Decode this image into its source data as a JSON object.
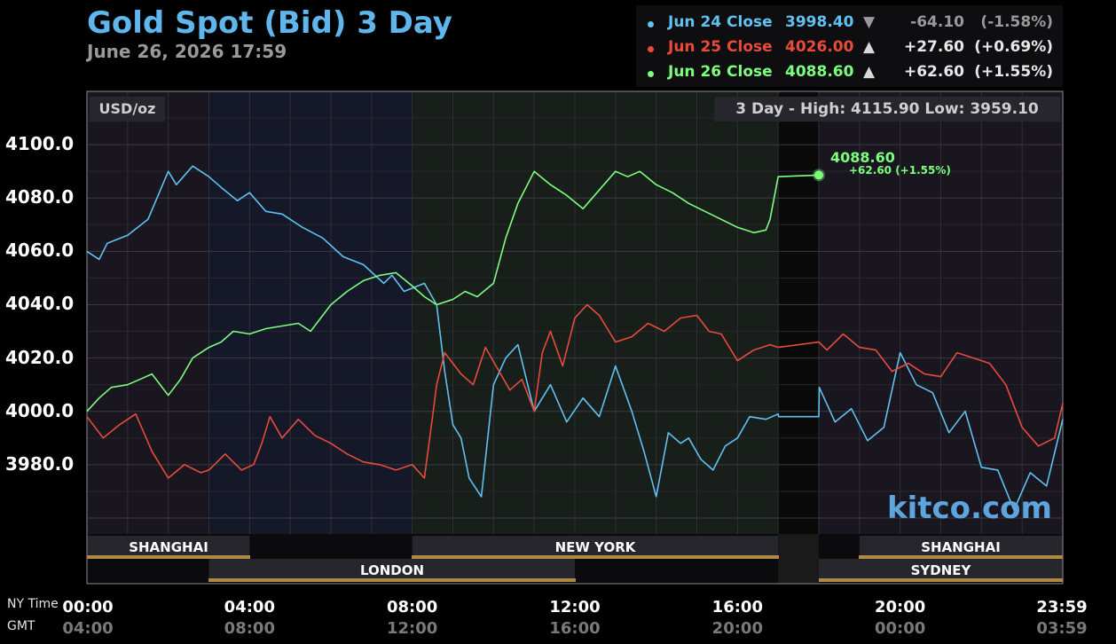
{
  "header": {
    "title": "Gold Spot (Bid) 3 Day",
    "subtitle": "June 26, 2026 17:59"
  },
  "legend": [
    {
      "name": "Jun 24 Close",
      "value": "3998.40",
      "arrow": "▼",
      "change": "-64.10",
      "pct": "(-1.58%)",
      "color": "#5fc2f0"
    },
    {
      "name": "Jun 25 Close",
      "value": "4026.00",
      "arrow": "▲",
      "change": "+27.60",
      "pct": "(+0.69%)",
      "color": "#e84b3a"
    },
    {
      "name": "Jun 26 Close",
      "value": "4088.60",
      "arrow": "▲",
      "change": "+62.60",
      "pct": "(+1.55%)",
      "color": "#7dff7d"
    }
  ],
  "panel": {
    "unit": "USD/oz",
    "high_low": "3 Day - High: 4115.90  Low: 3959.10",
    "last_value": "4088.60",
    "last_change": "+62.60 (+1.55%)",
    "brand": "kitco.com"
  },
  "sessions": [
    {
      "name": "SHANGHAI"
    },
    {
      "name": "LONDON"
    },
    {
      "name": "NEW YORK"
    },
    {
      "name": "SHANGHAI"
    },
    {
      "name": "SYDNEY"
    }
  ],
  "axis_labels": {
    "ny": "NY Time",
    "gmt": "GMT"
  },
  "chart_data": {
    "type": "line",
    "title": "Gold Spot (Bid) 3 Day",
    "ylabel": "USD/oz",
    "ylim": [
      3954,
      4120
    ],
    "yticks": [
      "4100.0",
      "4080.0",
      "4060.0",
      "4040.0",
      "4020.0",
      "4000.0",
      "3980.0"
    ],
    "ytick_values": [
      4100,
      4080,
      4060,
      4040,
      4020,
      4000,
      3980
    ],
    "xlim": [
      0,
      24
    ],
    "xticks_ny": [
      "00:00",
      "04:00",
      "08:00",
      "12:00",
      "16:00",
      "20:00",
      "23:59"
    ],
    "xticks_gmt": [
      "04:00",
      "08:00",
      "12:00",
      "16:00",
      "20:00",
      "00:00",
      "03:59"
    ],
    "xtick_hours": [
      0,
      4,
      8,
      12,
      16,
      20,
      24
    ],
    "high": 4115.9,
    "low": 3959.1,
    "grid": true,
    "series": [
      {
        "name": "Jun 24 Close",
        "color": "#5fc2f0",
        "x": [
          0,
          0.3,
          0.5,
          1,
          1.5,
          2,
          2.2,
          2.6,
          3,
          3.3,
          3.7,
          4,
          4.4,
          4.8,
          5.3,
          5.8,
          6.3,
          6.8,
          7.3,
          7.5,
          7.8,
          8.3,
          8.6,
          8.8,
          9,
          9.2,
          9.4,
          9.7,
          10,
          10.3,
          10.6,
          11,
          11.4,
          11.8,
          12.2,
          12.6,
          13,
          13.4,
          13.7,
          14,
          14.3,
          14.6,
          14.8,
          15.1,
          15.4,
          15.7,
          16,
          16.3,
          16.7,
          17,
          17.01,
          18,
          18.01,
          18.4,
          18.8,
          19.2,
          19.6,
          20,
          20.4,
          20.8,
          21.2,
          21.6,
          22,
          22.4,
          22.8,
          23.2,
          23.6,
          24
        ],
        "y": [
          4060,
          4057,
          4063,
          4066,
          4072,
          4090,
          4085,
          4092,
          4088,
          4084,
          4079,
          4082,
          4075,
          4074,
          4069,
          4065,
          4058,
          4055,
          4048,
          4051,
          4045,
          4048,
          4040,
          4015,
          3995,
          3990,
          3975,
          3968,
          4010,
          4020,
          4025,
          4000,
          4010,
          3996,
          4005,
          3998,
          4017,
          4000,
          3985,
          3968,
          3992,
          3988,
          3990,
          3982,
          3978,
          3987,
          3990,
          3998,
          3997,
          3999,
          3998,
          3998,
          4009,
          3996,
          4001,
          3989,
          3994,
          4022,
          4010,
          4007,
          3992,
          4000,
          3979,
          3978,
          3963,
          3977,
          3972,
          3997
        ]
      },
      {
        "name": "Jun 25 Close",
        "color": "#e84b3a",
        "x": [
          0,
          0.4,
          0.8,
          1.2,
          1.6,
          2,
          2.4,
          2.8,
          3,
          3.4,
          3.8,
          4.1,
          4.3,
          4.5,
          4.8,
          5.2,
          5.6,
          6,
          6.4,
          6.8,
          7.2,
          7.6,
          8,
          8.3,
          8.5,
          8.6,
          8.8,
          9,
          9.2,
          9.5,
          9.8,
          10.1,
          10.4,
          10.7,
          11,
          11.2,
          11.4,
          11.7,
          12,
          12.3,
          12.6,
          13,
          13.4,
          13.8,
          14.2,
          14.6,
          15,
          15.3,
          15.6,
          16,
          16.4,
          16.8,
          17,
          18,
          18.2,
          18.6,
          19,
          19.4,
          19.8,
          20.2,
          20.6,
          21,
          21.4,
          21.8,
          22.2,
          22.6,
          23,
          23.4,
          23.8,
          24
        ],
        "y": [
          3998,
          3990,
          3995,
          3999,
          3985,
          3975,
          3980,
          3977,
          3978,
          3984,
          3978,
          3980,
          3988,
          3998,
          3990,
          3997,
          3991,
          3988,
          3984,
          3981,
          3980,
          3978,
          3980,
          3975,
          3998,
          4010,
          4022,
          4018,
          4014,
          4010,
          4024,
          4016,
          4008,
          4012,
          4000,
          4022,
          4030,
          4017,
          4035,
          4040,
          4036,
          4026,
          4028,
          4033,
          4030,
          4035,
          4036,
          4030,
          4029,
          4019,
          4023,
          4025,
          4024,
          4026,
          4023,
          4029,
          4024,
          4023,
          4015,
          4018,
          4014,
          4013,
          4022,
          4020,
          4018,
          4010,
          3994,
          3987,
          3990,
          4003
        ]
      },
      {
        "name": "Jun 26 Close",
        "color": "#7dff7d",
        "x": [
          0,
          0.3,
          0.6,
          1,
          1.3,
          1.6,
          2,
          2.3,
          2.6,
          3,
          3.3,
          3.6,
          4,
          4.4,
          4.8,
          5.2,
          5.5,
          6,
          6.4,
          6.8,
          7.2,
          7.6,
          8,
          8.3,
          8.6,
          9,
          9.3,
          9.6,
          10,
          10.3,
          10.6,
          11,
          11.4,
          11.8,
          12.2,
          12.6,
          13,
          13.3,
          13.6,
          14,
          14.4,
          14.8,
          15.2,
          15.6,
          16,
          16.4,
          16.7,
          16.8,
          17,
          18
        ],
        "y": [
          4000,
          4005,
          4009,
          4010,
          4012,
          4014,
          4006,
          4012,
          4020,
          4024,
          4026,
          4030,
          4029,
          4031,
          4032,
          4033,
          4030,
          4040,
          4045,
          4049,
          4051,
          4052,
          4047,
          4043,
          4040,
          4042,
          4045,
          4043,
          4048,
          4065,
          4078,
          4090,
          4085,
          4081,
          4076,
          4083,
          4090,
          4088,
          4090,
          4085,
          4082,
          4078,
          4075,
          4072,
          4069,
          4067,
          4068,
          4072,
          4088,
          4088.6
        ]
      }
    ]
  }
}
